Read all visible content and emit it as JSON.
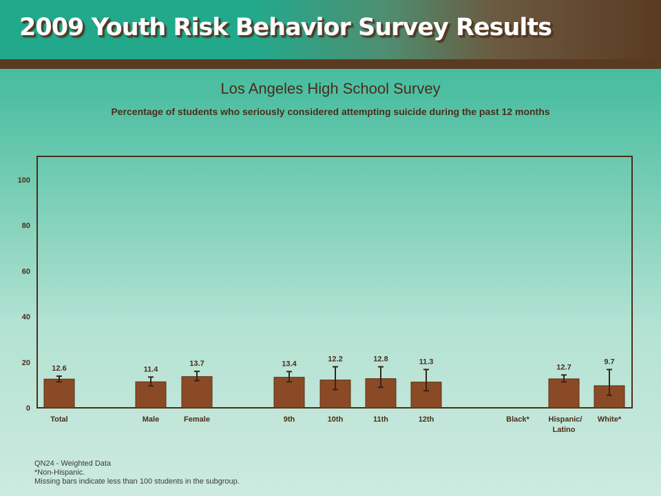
{
  "header": {
    "title": "2009 Youth Risk Behavior Survey Results"
  },
  "colors": {
    "bar": "#8b4a26",
    "bar_stroke": "#5a2f16",
    "frame": "#4a2d18",
    "text": "#4a2d18"
  },
  "chart_data": {
    "type": "bar",
    "title": "Los Angeles High School Survey",
    "subtitle": "Percentage of students who seriously considered attempting suicide during the past 12 months",
    "ylim": [
      0,
      110
    ],
    "y_ticks": [
      0,
      20,
      40,
      60,
      80,
      100
    ],
    "bars": [
      {
        "label": "Total",
        "value": 12.6,
        "ci": [
          11.4,
          13.9
        ]
      },
      {
        "label": "Male",
        "value": 11.4,
        "ci": [
          9.6,
          13.5
        ]
      },
      {
        "label": "Female",
        "value": 13.7,
        "ci": [
          11.9,
          16.0
        ]
      },
      {
        "label": "9th",
        "value": 13.4,
        "ci": [
          11.4,
          15.9
        ]
      },
      {
        "label": "10th",
        "value": 12.2,
        "ci": [
          8.0,
          18.0
        ]
      },
      {
        "label": "11th",
        "value": 12.8,
        "ci": [
          9.0,
          18.0
        ]
      },
      {
        "label": "12th",
        "value": 11.3,
        "ci": [
          7.5,
          16.8
        ]
      },
      {
        "label": "Black*",
        "value": null,
        "ci": null
      },
      {
        "label": "Hispanic/ Latino",
        "value": 12.7,
        "ci": [
          11.4,
          14.4
        ]
      },
      {
        "label": "White*",
        "value": 9.7,
        "ci": [
          5.5,
          16.8
        ]
      }
    ],
    "label_centers": [
      86,
      219,
      286,
      420,
      487,
      553,
      619,
      752,
      819,
      885
    ]
  },
  "notes": {
    "line1": "QN24 - Weighted Data",
    "line2": "*Non-Hispanic.",
    "line3": "Missing bars indicate less than 100 students in the subgroup."
  }
}
